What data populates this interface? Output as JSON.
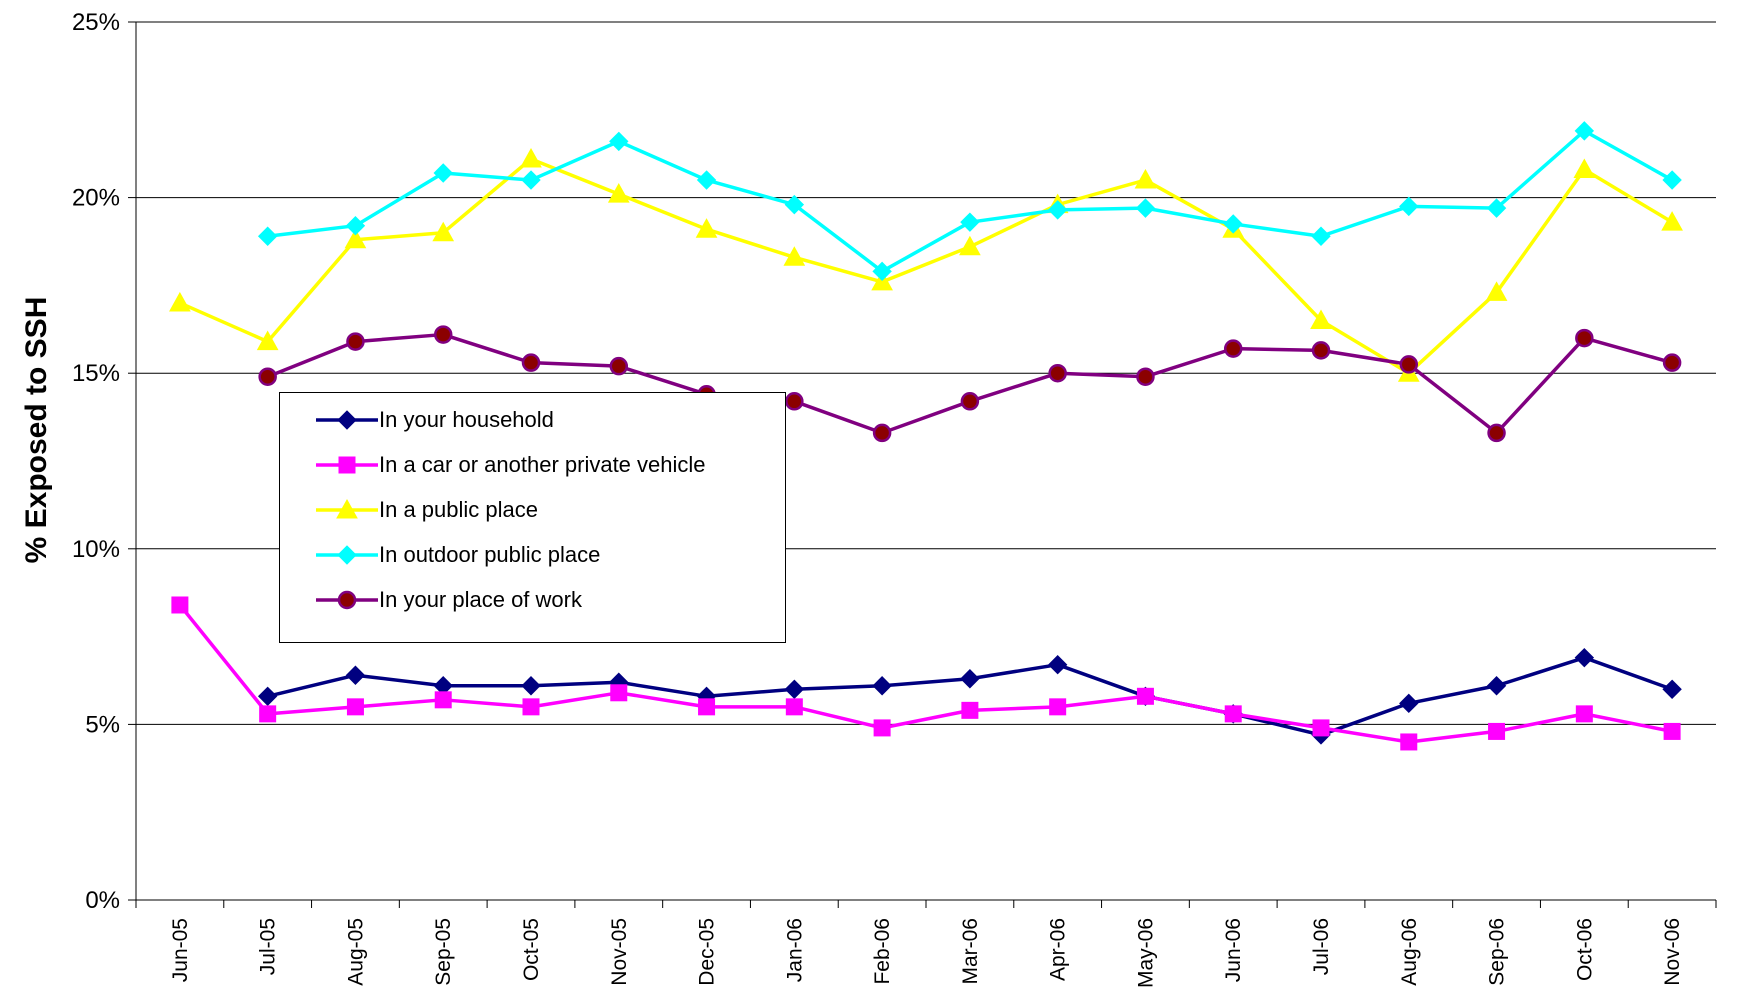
{
  "chart_data": {
    "type": "line",
    "title": "",
    "xlabel": "",
    "ylabel": "% Exposed to SSH",
    "ylim": [
      0,
      25
    ],
    "yticks": [
      "0%",
      "5%",
      "10%",
      "15%",
      "20%",
      "25%"
    ],
    "grid": "horizontal",
    "legend_position": "center-left",
    "categories": [
      "Jun-05",
      "Jul-05",
      "Aug-05",
      "Sep-05",
      "Oct-05",
      "Nov-05",
      "Dec-05",
      "Jan-06",
      "Feb-06",
      "Mar-06",
      "Apr-06",
      "May-06",
      "Jun-06",
      "Jul-06",
      "Aug-06",
      "Sep-06",
      "Oct-06",
      "Nov-06"
    ],
    "series": [
      {
        "name": "In your household",
        "color": "#000080",
        "marker": "diamond",
        "values": [
          null,
          5.8,
          6.4,
          6.1,
          6.1,
          6.2,
          5.8,
          6.0,
          6.1,
          6.3,
          6.7,
          5.8,
          5.3,
          4.7,
          5.6,
          6.1,
          6.9,
          6.0
        ]
      },
      {
        "name": "In a car or another private vehicle",
        "color": "#FF00FF",
        "marker": "square",
        "values": [
          8.4,
          5.3,
          5.5,
          5.7,
          5.5,
          5.9,
          5.5,
          5.5,
          4.9,
          5.4,
          5.5,
          5.8,
          5.3,
          4.9,
          4.5,
          4.8,
          5.3,
          4.8
        ]
      },
      {
        "name": "In a public place",
        "color": "#FFFF00",
        "marker": "triangle",
        "values": [
          17.0,
          15.9,
          18.8,
          19.0,
          21.1,
          20.1,
          19.1,
          18.3,
          17.6,
          18.6,
          19.8,
          20.5,
          19.1,
          16.5,
          15.0,
          17.3,
          20.8,
          19.3
        ]
      },
      {
        "name": "In outdoor public place",
        "color": "#00FFFF",
        "marker": "diamond",
        "values": [
          null,
          18.9,
          19.2,
          20.7,
          20.5,
          21.6,
          20.5,
          19.8,
          17.9,
          19.3,
          19.65,
          19.7,
          19.25,
          18.9,
          19.75,
          19.7,
          21.9,
          20.5
        ]
      },
      {
        "name": "In your place of work",
        "color": "#800080",
        "marker": "circle",
        "values": [
          null,
          14.9,
          15.9,
          16.1,
          15.3,
          15.2,
          14.4,
          14.2,
          13.3,
          14.2,
          15.0,
          14.9,
          15.7,
          15.65,
          15.25,
          13.3,
          16.0,
          15.3
        ]
      }
    ]
  }
}
